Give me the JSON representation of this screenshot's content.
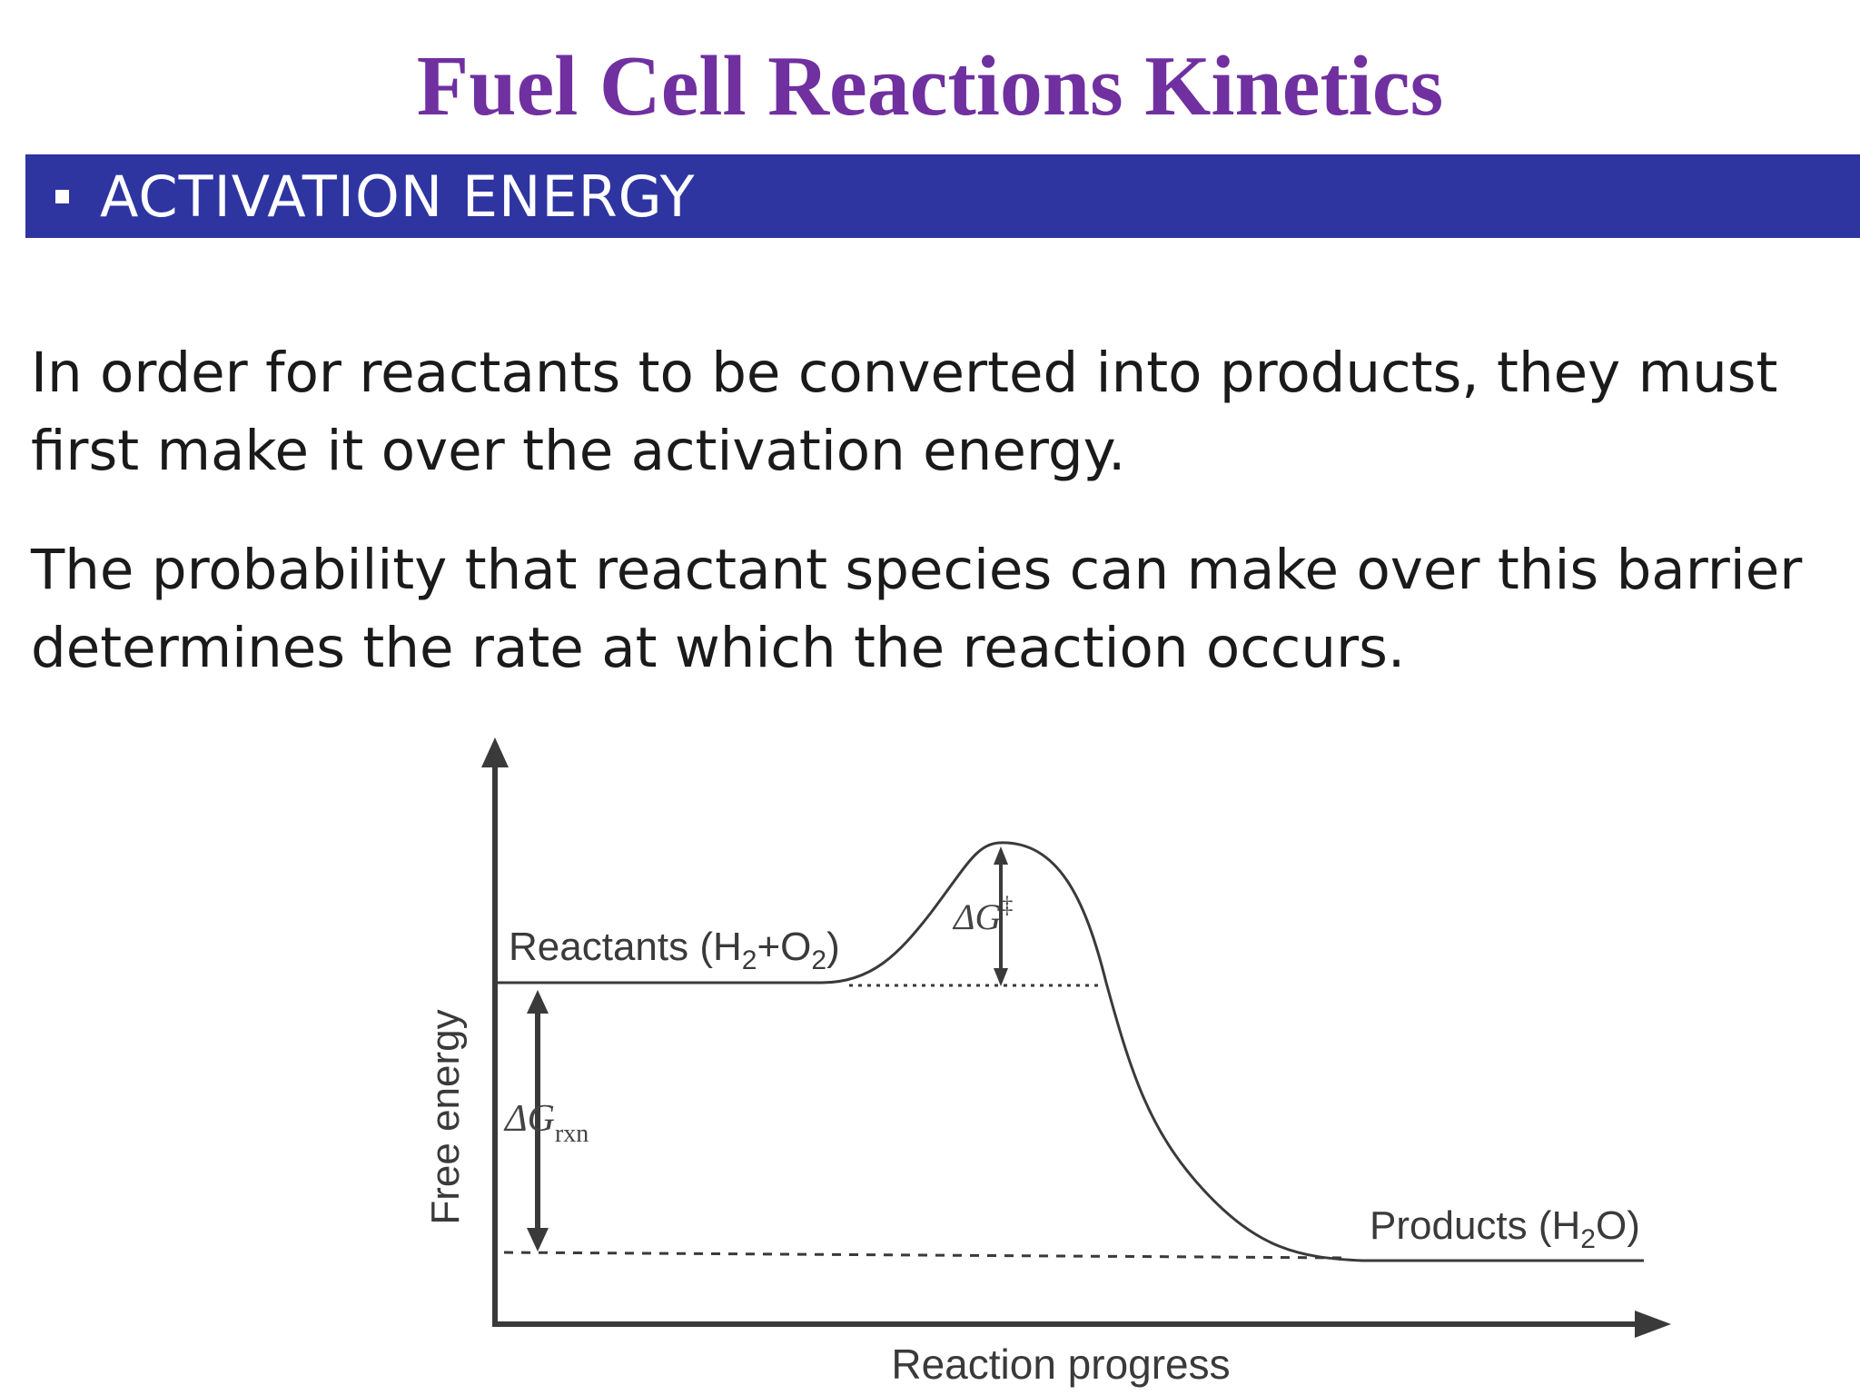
{
  "title": "Fuel Cell Reactions Kinetics",
  "section": {
    "heading": "ACTIVATION ENERGY"
  },
  "paragraphs": [
    "In order for reactants to be converted into products, they must first make it over the activation energy.",
    "The probability that reactant species can make over this barrier determines the rate at which the reaction occurs."
  ],
  "diagram": {
    "y_axis_label": "Free energy",
    "x_axis_label": "Reaction progress",
    "reactants_label": {
      "prefix": "Reactants (H",
      "sub1": "2",
      "mid": "+O",
      "sub2": "2",
      "suffix": ")"
    },
    "products_label": {
      "prefix": "Products (H",
      "sub": "2",
      "suffix": "O)"
    },
    "activation_label": {
      "symbol": "ΔG",
      "superscript": "‡"
    },
    "reaction_label": {
      "symbol": "ΔG",
      "subscript": "rxn"
    },
    "colors": {
      "title": "#7030a0",
      "section_bar": "#2e35a1",
      "lines": "#3a3a3a"
    }
  }
}
